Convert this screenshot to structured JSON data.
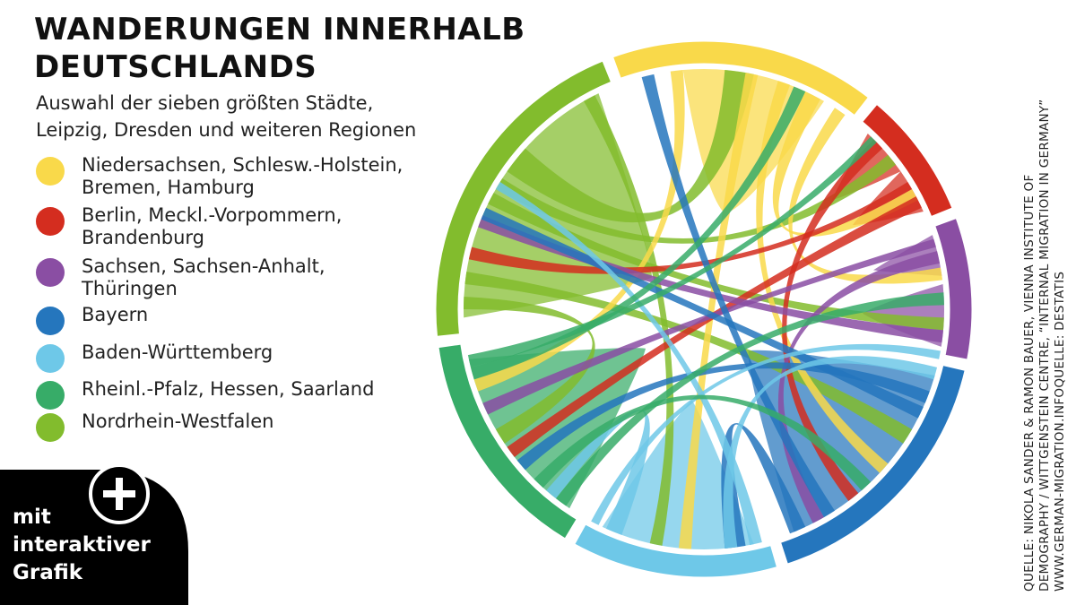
{
  "header": {
    "title_line1": "WANDERUNGEN INNERHALB",
    "title_line2": "DEUTSCHLANDS",
    "subtitle_line1": "Auswahl der sieben größten Städte,",
    "subtitle_line2": "Leipzig, Dresden und weiteren Regionen"
  },
  "legend": [
    {
      "line1": "Niedersachsen, Schlesw.-Holstein,",
      "line2": "Bremen, Hamburg",
      "color": "#f9d94a"
    },
    {
      "line1": "Berlin, Meckl.-Vorpommern,",
      "line2": "Brandenburg",
      "color": "#d42d1f"
    },
    {
      "line1": "Sachsen, Sachsen-Anhalt,",
      "line2": "Thüringen",
      "color": "#8a4ea3"
    },
    {
      "line1": "Bayern",
      "line2": "",
      "color": "#2576bd"
    },
    {
      "line1": "Baden-Württemberg",
      "line2": "",
      "color": "#6ec8e8"
    },
    {
      "line1": "Rheinl.-Pfalz, Hessen, Saarland",
      "line2": "",
      "color": "#37ac68"
    },
    {
      "line1": "Nordrhein-Westfalen",
      "line2": "",
      "color": "#82bc2d"
    }
  ],
  "source": {
    "line1": "Quelle:  Nikola Sander & Ramon Bauer, Vienna Institute of",
    "line2": "Demography / Wittgenstein Centre, “Internal Migration in Germany”",
    "line3": "www.german-migration.infoQuelle: Destatis"
  },
  "badge": {
    "line1": "mit",
    "line2": "interaktiver",
    "line3": "Grafik",
    "plus_icon": "plus-icon"
  },
  "chart_data": {
    "type": "chord",
    "regions": [
      {
        "name": "Niedersachsen, Schlesw.-Holstein, Bremen, Hamburg",
        "color": "#f9d94a",
        "arc_start_deg": -20,
        "arc_end_deg": 38
      },
      {
        "name": "Berlin, Meckl.-Vorpommern, Brandenburg",
        "color": "#d42d1f",
        "arc_start_deg": 40,
        "arc_end_deg": 68
      },
      {
        "name": "Sachsen, Sachsen-Anhalt, Thüringen",
        "color": "#8a4ea3",
        "arc_start_deg": 70,
        "arc_end_deg": 101
      },
      {
        "name": "Bayern",
        "color": "#2576bd",
        "arc_start_deg": 103,
        "arc_end_deg": 162
      },
      {
        "name": "Baden-Württemberg",
        "color": "#6ec8e8",
        "arc_start_deg": 164,
        "arc_end_deg": 209
      },
      {
        "name": "Rheinl.-Pfalz, Hessen, Saarland",
        "color": "#37ac68",
        "arc_start_deg": 211,
        "arc_end_deg": 262
      },
      {
        "name": "Nordrhein-Westfalen",
        "color": "#82bc2d",
        "arc_start_deg": 264,
        "arc_end_deg": 338
      }
    ],
    "ribbons": [
      {
        "from": 0,
        "to": 0,
        "a0": -5,
        "a1": 30,
        "b0": 0,
        "b1": 25,
        "kind": "self"
      },
      {
        "from": 1,
        "to": 1,
        "a0": 43,
        "a1": 55,
        "b0": 47,
        "b1": 52,
        "kind": "self"
      },
      {
        "from": 1,
        "to": 1,
        "a0": 55,
        "a1": 66,
        "b0": 58,
        "b1": 63,
        "kind": "self"
      },
      {
        "from": 2,
        "to": 2,
        "a0": 72,
        "a1": 82,
        "b0": 75,
        "b1": 79,
        "kind": "self"
      },
      {
        "from": 2,
        "to": 2,
        "a0": 84,
        "a1": 99,
        "b0": 88,
        "b1": 95,
        "kind": "self"
      },
      {
        "from": 3,
        "to": 3,
        "a0": 106,
        "a1": 158,
        "b0": 118,
        "b1": 148,
        "kind": "self"
      },
      {
        "from": 4,
        "to": 4,
        "a0": 168,
        "a1": 205,
        "b0": 180,
        "b1": 195,
        "kind": "self"
      },
      {
        "from": 5,
        "to": 5,
        "a0": 214,
        "a1": 258,
        "b0": 226,
        "b1": 246,
        "kind": "self"
      },
      {
        "from": 6,
        "to": 6,
        "a0": 268,
        "a1": 334,
        "b0": 285,
        "b1": 318,
        "kind": "self"
      },
      {
        "from": 6,
        "to": 0,
        "a0": 305,
        "a1": 312,
        "b0": 5,
        "b1": 12
      },
      {
        "from": 6,
        "to": 1,
        "a0": 300,
        "a1": 303,
        "b0": 50,
        "b1": 53
      },
      {
        "from": 6,
        "to": 2,
        "a0": 296,
        "a1": 299,
        "b0": 92,
        "b1": 95
      },
      {
        "from": 6,
        "to": 3,
        "a0": 276,
        "a1": 279,
        "b0": 120,
        "b1": 124
      },
      {
        "from": 6,
        "to": 4,
        "a0": 330,
        "a1": 333,
        "b0": 190,
        "b1": 193
      },
      {
        "from": 6,
        "to": 5,
        "a0": 270,
        "a1": 273,
        "b0": 236,
        "b1": 240
      },
      {
        "from": 0,
        "to": 1,
        "a0": 25,
        "a1": 29,
        "b0": 60,
        "b1": 63
      },
      {
        "from": 0,
        "to": 3,
        "a0": 18,
        "a1": 21,
        "b0": 130,
        "b1": 133
      },
      {
        "from": 0,
        "to": 4,
        "a0": 10,
        "a1": 13,
        "b0": 183,
        "b1": 186
      },
      {
        "from": 0,
        "to": 5,
        "a0": -8,
        "a1": -5,
        "b0": 250,
        "b1": 253
      },
      {
        "from": 0,
        "to": 2,
        "a0": 33,
        "a1": 36,
        "b0": 80,
        "b1": 83
      },
      {
        "from": 1,
        "to": 3,
        "a0": 45,
        "a1": 48,
        "b0": 140,
        "b1": 143
      },
      {
        "from": 1,
        "to": 5,
        "a0": 62,
        "a1": 65,
        "b0": 232,
        "b1": 235
      },
      {
        "from": 1,
        "to": 6,
        "a0": 58,
        "a1": 60,
        "b0": 282,
        "b1": 285
      },
      {
        "from": 2,
        "to": 3,
        "a0": 76,
        "a1": 79,
        "b0": 150,
        "b1": 153
      },
      {
        "from": 2,
        "to": 5,
        "a0": 73,
        "a1": 75,
        "b0": 244,
        "b1": 247
      },
      {
        "from": 2,
        "to": 6,
        "a0": 95,
        "a1": 98,
        "b0": 290,
        "b1": 293
      },
      {
        "from": 3,
        "to": 4,
        "a0": 155,
        "a1": 159,
        "b0": 170,
        "b1": 175
      },
      {
        "from": 3,
        "to": 5,
        "a0": 110,
        "a1": 113,
        "b0": 228,
        "b1": 231
      },
      {
        "from": 3,
        "to": 6,
        "a0": 114,
        "a1": 117,
        "b0": 292,
        "b1": 295
      },
      {
        "from": 3,
        "to": 0,
        "a0": 147,
        "a1": 150,
        "b0": -15,
        "b1": -12
      },
      {
        "from": 4,
        "to": 5,
        "a0": 200,
        "a1": 204,
        "b0": 218,
        "b1": 221
      },
      {
        "from": 4,
        "to": 6,
        "a0": 166,
        "a1": 169,
        "b0": 300,
        "b1": 302
      },
      {
        "from": 4,
        "to": 3,
        "a0": 172,
        "a1": 175,
        "b0": 104,
        "b1": 107
      },
      {
        "from": 4,
        "to": 2,
        "a0": 206,
        "a1": 208,
        "b0": 100,
        "b1": 102
      },
      {
        "from": 5,
        "to": 2,
        "a0": 215,
        "a1": 218,
        "b0": 86,
        "b1": 89
      },
      {
        "from": 5,
        "to": 0,
        "a0": 253,
        "a1": 256,
        "b0": 22,
        "b1": 25
      },
      {
        "from": 5,
        "to": 3,
        "a0": 222,
        "a1": 225,
        "b0": 136,
        "b1": 139
      },
      {
        "from": 5,
        "to": 1,
        "a0": 256,
        "a1": 259,
        "b0": 44,
        "b1": 46
      }
    ]
  }
}
